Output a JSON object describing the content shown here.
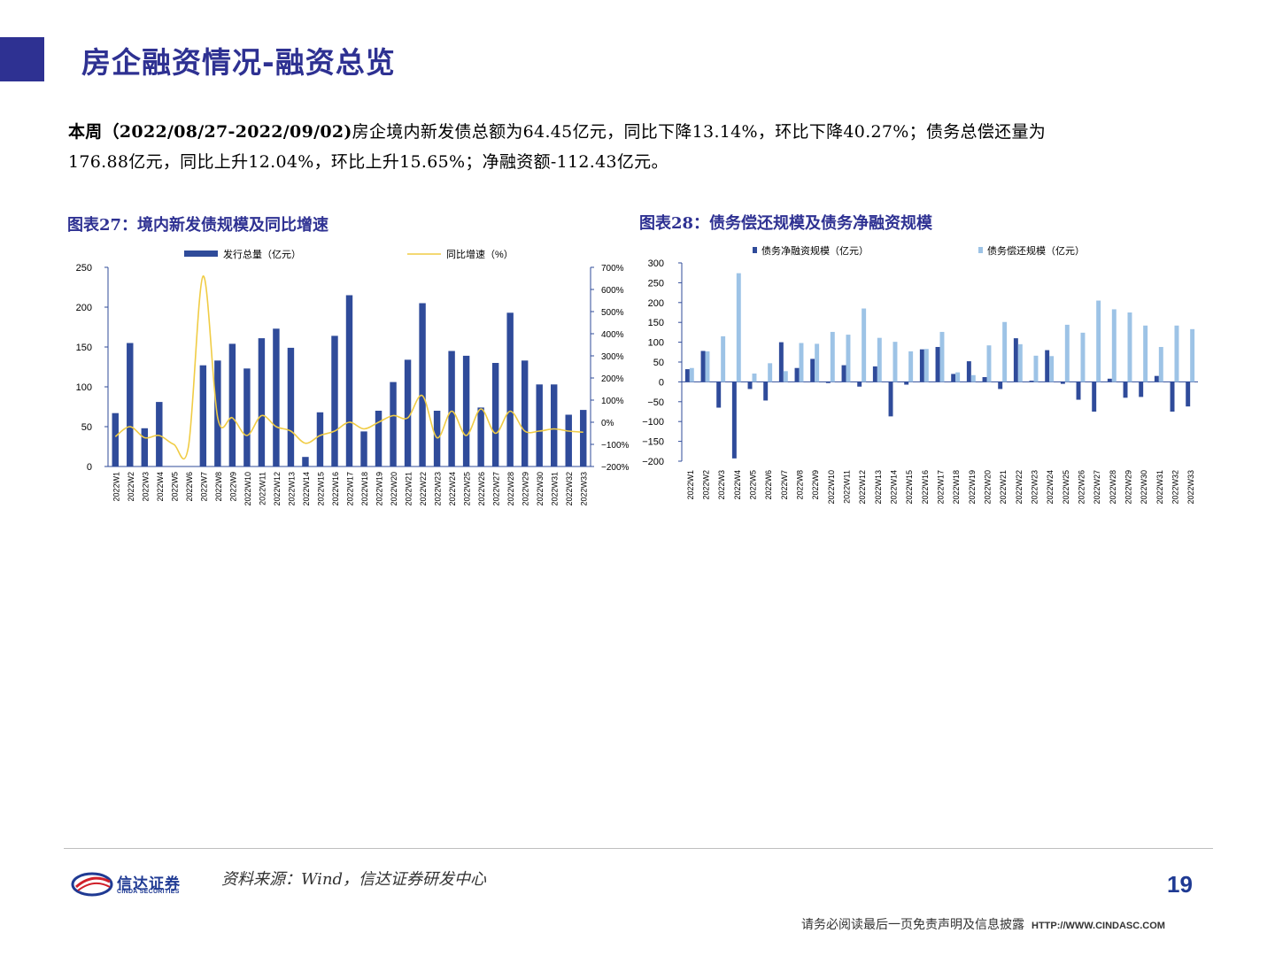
{
  "page": {
    "title": "房企融资情况-融资总览",
    "summary_bold": "本周（2022/08/27-2022/09/02)",
    "summary_line1": "房企境内新发债总额为64.45亿元，同比下降13.14%，环比下降40.27%；债务总偿还量为",
    "summary_line2": "176.88亿元，同比上升12.04%，环比上升15.65%；净融资额-112.43亿元。",
    "source": "资料来源：Wind，信达证券研发中心",
    "page_number": "19",
    "disclaimer": "请务必阅读最后一页免责声明及信息披露",
    "url": "HTTP://WWW.CINDASC.COM",
    "logo_name": "信达证券",
    "logo_sub": "CINDA SECURITIES"
  },
  "colors": {
    "brand": "#2e3192",
    "bar_dark": "#2f4b9a",
    "bar_light": "#9dc3e6",
    "line_yellow": "#f0cc45"
  },
  "chart_data": [
    {
      "id": "fig27",
      "figure_title": "图表27：境内新发债规模及同比增速",
      "type": "bar",
      "categories": [
        "2022W1",
        "2022W2",
        "2022W3",
        "2022W4",
        "2022W5",
        "2022W6",
        "2022W7",
        "2022W8",
        "2022W9",
        "2022W10",
        "2022W11",
        "2022W12",
        "2022W13",
        "2022W14",
        "2022W15",
        "2022W16",
        "2022W17",
        "2022W18",
        "2022W19",
        "2022W20",
        "2022W21",
        "2022W22",
        "2022W23",
        "2022W24",
        "2022W25",
        "2022W26",
        "2022W27",
        "2022W28",
        "2022W29",
        "2022W30",
        "2022W31",
        "2022W32",
        "2022W33"
      ],
      "series": [
        {
          "name": "发行总量（亿元）",
          "type": "bar",
          "axis": "left",
          "values": [
            67,
            155,
            48,
            81,
            0,
            0,
            127,
            133,
            154,
            123,
            161,
            173,
            149,
            12,
            68,
            164,
            215,
            44,
            70,
            106,
            134,
            205,
            70,
            145,
            139,
            74,
            130,
            193,
            133,
            103,
            103,
            65,
            71
          ]
        },
        {
          "name": "同比增速（%）",
          "type": "line",
          "axis": "right",
          "values": [
            -65,
            -20,
            -70,
            -60,
            -100,
            -110,
            660,
            20,
            20,
            -60,
            30,
            -20,
            -40,
            -95,
            -60,
            -40,
            0,
            -30,
            0,
            30,
            20,
            120,
            -70,
            50,
            -60,
            60,
            -50,
            50,
            -40,
            -40,
            -30,
            -40,
            -45
          ]
        }
      ],
      "ylim_left": [
        0,
        250
      ],
      "yticks_left": [
        "0",
        "50",
        "100",
        "150",
        "200",
        "250"
      ],
      "ylim_right": [
        -200,
        700
      ],
      "yticks_right": [
        "-200%",
        "-100%",
        "0%",
        "100%",
        "200%",
        "300%",
        "400%",
        "500%",
        "600%",
        "700%"
      ],
      "legend": "top"
    },
    {
      "id": "fig28",
      "figure_title": "图表28：债务偿还规模及债务净融资规模",
      "type": "bar",
      "categories": [
        "2022W1",
        "2022W2",
        "2022W3",
        "2022W4",
        "2022W5",
        "2022W6",
        "2022W7",
        "2022W8",
        "2022W9",
        "2022W10",
        "2022W11",
        "2022W12",
        "2022W13",
        "2022W14",
        "2022W15",
        "2022W16",
        "2022W17",
        "2022W18",
        "2022W19",
        "2022W20",
        "2022W21",
        "2022W22",
        "2022W23",
        "2022W24",
        "2022W25",
        "2022W26",
        "2022W27",
        "2022W28",
        "2022W29",
        "2022W30",
        "2022W31",
        "2022W32",
        "2022W33"
      ],
      "series": [
        {
          "name": "债务净融资规模（亿元）",
          "values": [
            32,
            78,
            -65,
            -193,
            -18,
            -47,
            100,
            35,
            58,
            -3,
            42,
            -12,
            39,
            -87,
            -7,
            82,
            88,
            20,
            52,
            12,
            -18,
            110,
            3,
            80,
            -5,
            -45,
            -75,
            8,
            -40,
            -38,
            15,
            -75,
            -62
          ]
        },
        {
          "name": "债务偿还规模（亿元）",
          "values": [
            35,
            77,
            115,
            274,
            21,
            47,
            27,
            98,
            96,
            126,
            119,
            185,
            111,
            101,
            77,
            83,
            126,
            24,
            17,
            92,
            151,
            95,
            66,
            65,
            144,
            124,
            205,
            183,
            175,
            142,
            88,
            142,
            133
          ]
        }
      ],
      "ylim": [
        -200,
        300
      ],
      "yticks": [
        "−200",
        "−150",
        "−100",
        "−50",
        "0",
        "50",
        "100",
        "150",
        "200",
        "250",
        "300"
      ],
      "legend": "top"
    }
  ]
}
